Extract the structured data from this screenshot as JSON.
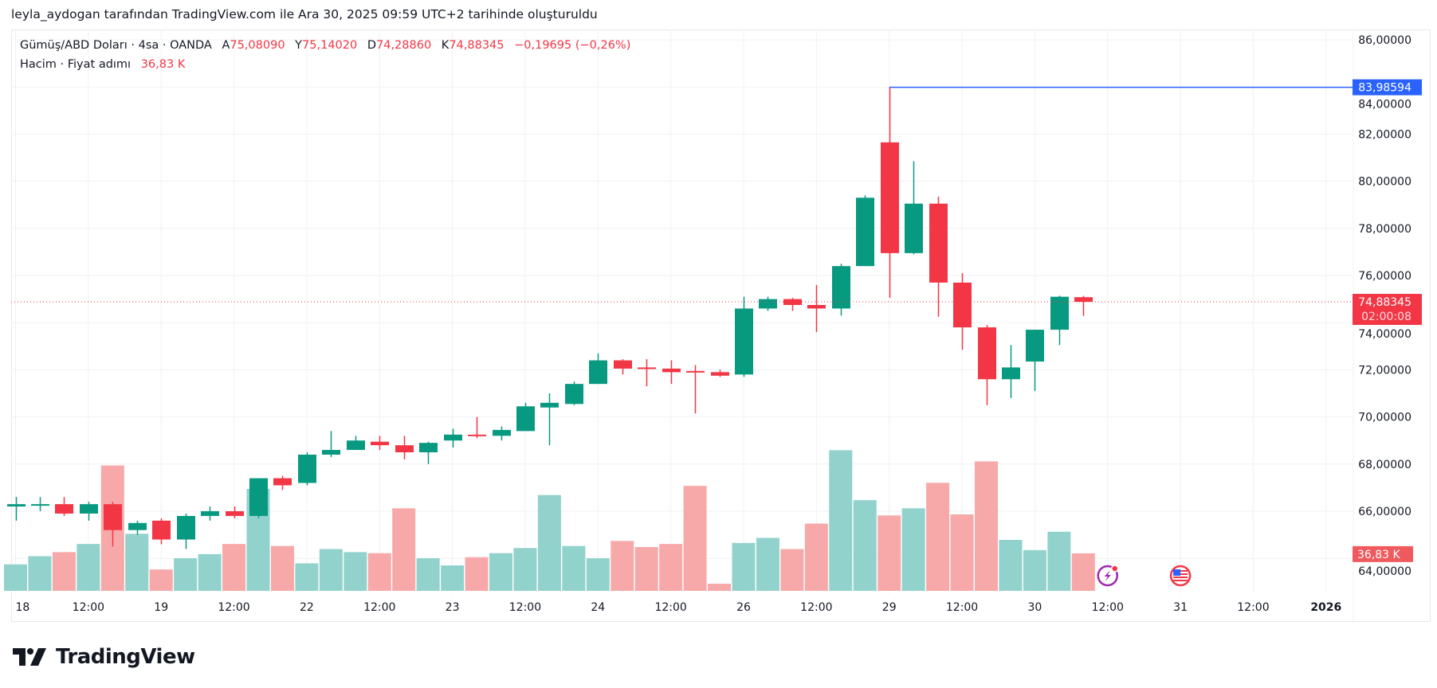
{
  "header": {
    "credit": "leyla_aydogan tarafından TradingView.com ile Ara 30, 2025 09:59 UTC+2 tarihinde oluşturuldu"
  },
  "legend": {
    "symbol": "Gümüş/ABD Doları · 4sa · OANDA",
    "open_label": "A",
    "open": "75,08090",
    "high_label": "Y",
    "high": "75,14020",
    "low_label": "D",
    "low": "74,28860",
    "close_label": "K",
    "close": "74,88345",
    "change": "−0,19695 (−0,26%)",
    "volume_title": "Hacim · Fiyat adımı",
    "volume_value": "36,83 K"
  },
  "price_axis": {
    "ticks": [
      "86,00000",
      "84,00000",
      "82,00000",
      "80,00000",
      "78,00000",
      "76,00000",
      "74,00000",
      "72,00000",
      "70,00000",
      "68,00000",
      "66,00000",
      "64,00000"
    ],
    "tick_values": [
      86,
      84,
      82,
      80,
      78,
      76,
      74,
      72,
      70,
      68,
      66,
      64
    ],
    "high_marker": "83,98594",
    "last_price": "74,88345",
    "countdown": "02:00:08",
    "volume_marker": "36,83 K"
  },
  "colors": {
    "up": "#089981",
    "down": "#f23645",
    "vol_up": "#92d2cc",
    "vol_down": "#f7a9a9",
    "high_line": "#2962ff"
  },
  "logo": {
    "text": "TradingView"
  },
  "chart_data": {
    "type": "candlestick",
    "title": "Gümüş/ABD Doları · 4sa · OANDA",
    "ylim": [
      63.5,
      86.4
    ],
    "high_line_value": 83.98594,
    "high_line_from_bar": 36,
    "last_price_value": 74.88345,
    "x_labels": [
      {
        "bar": 0,
        "label": "18"
      },
      {
        "bar": 3,
        "label": "12:00"
      },
      {
        "bar": 6,
        "label": "19"
      },
      {
        "bar": 9,
        "label": "12:00"
      },
      {
        "bar": 12,
        "label": "22"
      },
      {
        "bar": 15,
        "label": "12:00"
      },
      {
        "bar": 18,
        "label": "23"
      },
      {
        "bar": 21,
        "label": "12:00"
      },
      {
        "bar": 24,
        "label": "24"
      },
      {
        "bar": 27,
        "label": "12:00"
      },
      {
        "bar": 30,
        "label": "26"
      },
      {
        "bar": 33,
        "label": "12:00"
      },
      {
        "bar": 36,
        "label": "29"
      },
      {
        "bar": 39,
        "label": "12:00"
      },
      {
        "bar": 42,
        "label": "30"
      },
      {
        "bar": 45,
        "label": "12:00"
      },
      {
        "bar": 48,
        "label": "31"
      },
      {
        "bar": 51,
        "label": "12:00"
      },
      {
        "bar": 54,
        "label": "2026"
      }
    ],
    "ohlcv": [
      [
        66.2,
        66.6,
        65.6,
        66.3,
        26
      ],
      [
        66.3,
        66.6,
        66.0,
        66.3,
        34
      ],
      [
        66.3,
        66.6,
        65.8,
        65.9,
        38
      ],
      [
        65.9,
        66.4,
        65.6,
        66.3,
        46
      ],
      [
        66.3,
        66.4,
        64.5,
        65.2,
        123
      ],
      [
        65.2,
        65.6,
        65.0,
        65.5,
        56
      ],
      [
        65.6,
        65.7,
        64.6,
        64.8,
        21
      ],
      [
        64.8,
        65.9,
        64.4,
        65.8,
        32
      ],
      [
        65.8,
        66.2,
        65.6,
        66.0,
        36
      ],
      [
        66.0,
        66.2,
        65.7,
        65.8,
        46
      ],
      [
        65.8,
        67.4,
        65.7,
        67.4,
        100
      ],
      [
        67.4,
        67.5,
        66.9,
        67.1,
        44
      ],
      [
        67.2,
        68.5,
        67.1,
        68.4,
        27
      ],
      [
        68.4,
        69.4,
        68.3,
        68.6,
        41
      ],
      [
        68.6,
        69.2,
        68.6,
        69.0,
        38
      ],
      [
        68.95,
        69.2,
        68.6,
        68.8,
        37
      ],
      [
        68.8,
        69.2,
        68.2,
        68.5,
        81
      ],
      [
        68.5,
        68.95,
        68.0,
        68.9,
        32
      ],
      [
        69.0,
        69.5,
        68.7,
        69.25,
        25
      ],
      [
        69.25,
        70.0,
        69.1,
        69.2,
        33
      ],
      [
        69.2,
        69.6,
        69.0,
        69.45,
        37
      ],
      [
        69.4,
        70.6,
        69.4,
        70.45,
        42
      ],
      [
        70.4,
        71.0,
        68.8,
        70.6,
        94
      ],
      [
        70.55,
        71.5,
        70.5,
        71.4,
        44
      ],
      [
        71.4,
        72.7,
        71.4,
        72.4,
        32
      ],
      [
        72.4,
        72.45,
        71.8,
        72.05,
        49
      ],
      [
        72.1,
        72.45,
        71.3,
        72.05,
        43
      ],
      [
        72.05,
        72.4,
        71.4,
        71.9,
        46
      ],
      [
        71.95,
        72.2,
        70.15,
        71.9,
        103
      ],
      [
        71.9,
        72.0,
        71.7,
        71.75,
        7
      ],
      [
        71.8,
        75.1,
        71.7,
        74.6,
        47
      ],
      [
        74.6,
        75.1,
        74.5,
        75.0,
        52
      ],
      [
        75.0,
        75.05,
        74.5,
        74.75,
        41
      ],
      [
        74.75,
        75.6,
        73.6,
        74.6,
        66
      ],
      [
        74.6,
        76.5,
        74.3,
        76.4,
        138
      ],
      [
        76.4,
        79.4,
        76.4,
        79.3,
        89
      ],
      [
        81.65,
        83.98594,
        75.05,
        76.95,
        74
      ],
      [
        76.95,
        80.85,
        76.9,
        79.05,
        81
      ],
      [
        79.05,
        79.35,
        74.25,
        75.7,
        106
      ],
      [
        75.7,
        76.1,
        72.85,
        73.8,
        75
      ],
      [
        73.8,
        73.9,
        70.5,
        71.6,
        127
      ],
      [
        71.6,
        73.05,
        70.8,
        72.1,
        50
      ],
      [
        72.35,
        73.7,
        71.1,
        73.7,
        40
      ],
      [
        73.7,
        75.14,
        73.05,
        75.1,
        58
      ],
      [
        75.0809,
        75.1402,
        74.2886,
        74.88345,
        36.83
      ]
    ],
    "ohlcv_fields": [
      "open",
      "high",
      "low",
      "close",
      "volume_K"
    ],
    "event_icons": [
      {
        "bar": 45,
        "icon": "lightning-icon"
      },
      {
        "bar": 48,
        "icon": "us-flag-icon"
      }
    ]
  }
}
